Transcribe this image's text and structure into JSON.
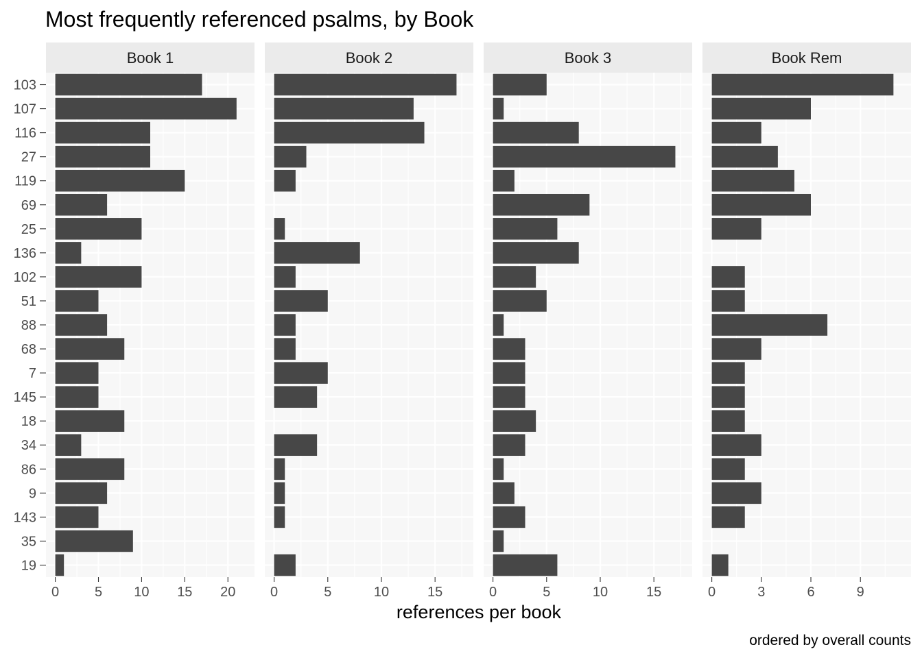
{
  "chart_data": {
    "type": "bar",
    "orientation": "horizontal",
    "title": "Most frequently referenced psalms, by Book",
    "xlabel": "references per book",
    "ylabel": "",
    "caption": "ordered by overall counts",
    "categories": [
      "103",
      "107",
      "116",
      "27",
      "119",
      "69",
      "25",
      "136",
      "102",
      "51",
      "88",
      "68",
      "7",
      "145",
      "18",
      "34",
      "86",
      "9",
      "143",
      "35",
      "19"
    ],
    "grid": true,
    "facet_scales": "free_x",
    "colors": {
      "bar": "#474747",
      "panel_bg": "#f7f7f7",
      "strip_bg": "#ebebeb",
      "grid": "#ffffff"
    },
    "facets": [
      {
        "label": "Book 1",
        "xlim": [
          0,
          22
        ],
        "xticks": [
          0,
          5,
          10,
          15,
          20
        ],
        "values": [
          17,
          21,
          11,
          11,
          15,
          6,
          10,
          3,
          10,
          5,
          6,
          8,
          5,
          5,
          8,
          3,
          8,
          6,
          5,
          9,
          1
        ]
      },
      {
        "label": "Book 2",
        "xlim": [
          0,
          17.7
        ],
        "xticks": [
          0,
          5,
          10,
          15
        ],
        "values": [
          17,
          13,
          14,
          3,
          2,
          0,
          1,
          8,
          2,
          5,
          2,
          2,
          5,
          4,
          0,
          4,
          1,
          1,
          1,
          0,
          2
        ]
      },
      {
        "label": "Book 3",
        "xlim": [
          0,
          17.7
        ],
        "xticks": [
          0,
          5,
          10,
          15
        ],
        "values": [
          5,
          1,
          8,
          17,
          2,
          9,
          6,
          8,
          4,
          5,
          1,
          3,
          3,
          3,
          4,
          3,
          1,
          2,
          3,
          1,
          6
        ]
      },
      {
        "label": "Book Rem",
        "xlim": [
          0,
          11.5
        ],
        "xticks": [
          0,
          3,
          6,
          9
        ],
        "values": [
          11,
          6,
          3,
          4,
          5,
          6,
          3,
          0,
          2,
          2,
          7,
          3,
          2,
          2,
          2,
          3,
          2,
          3,
          2,
          0,
          1
        ]
      }
    ]
  }
}
